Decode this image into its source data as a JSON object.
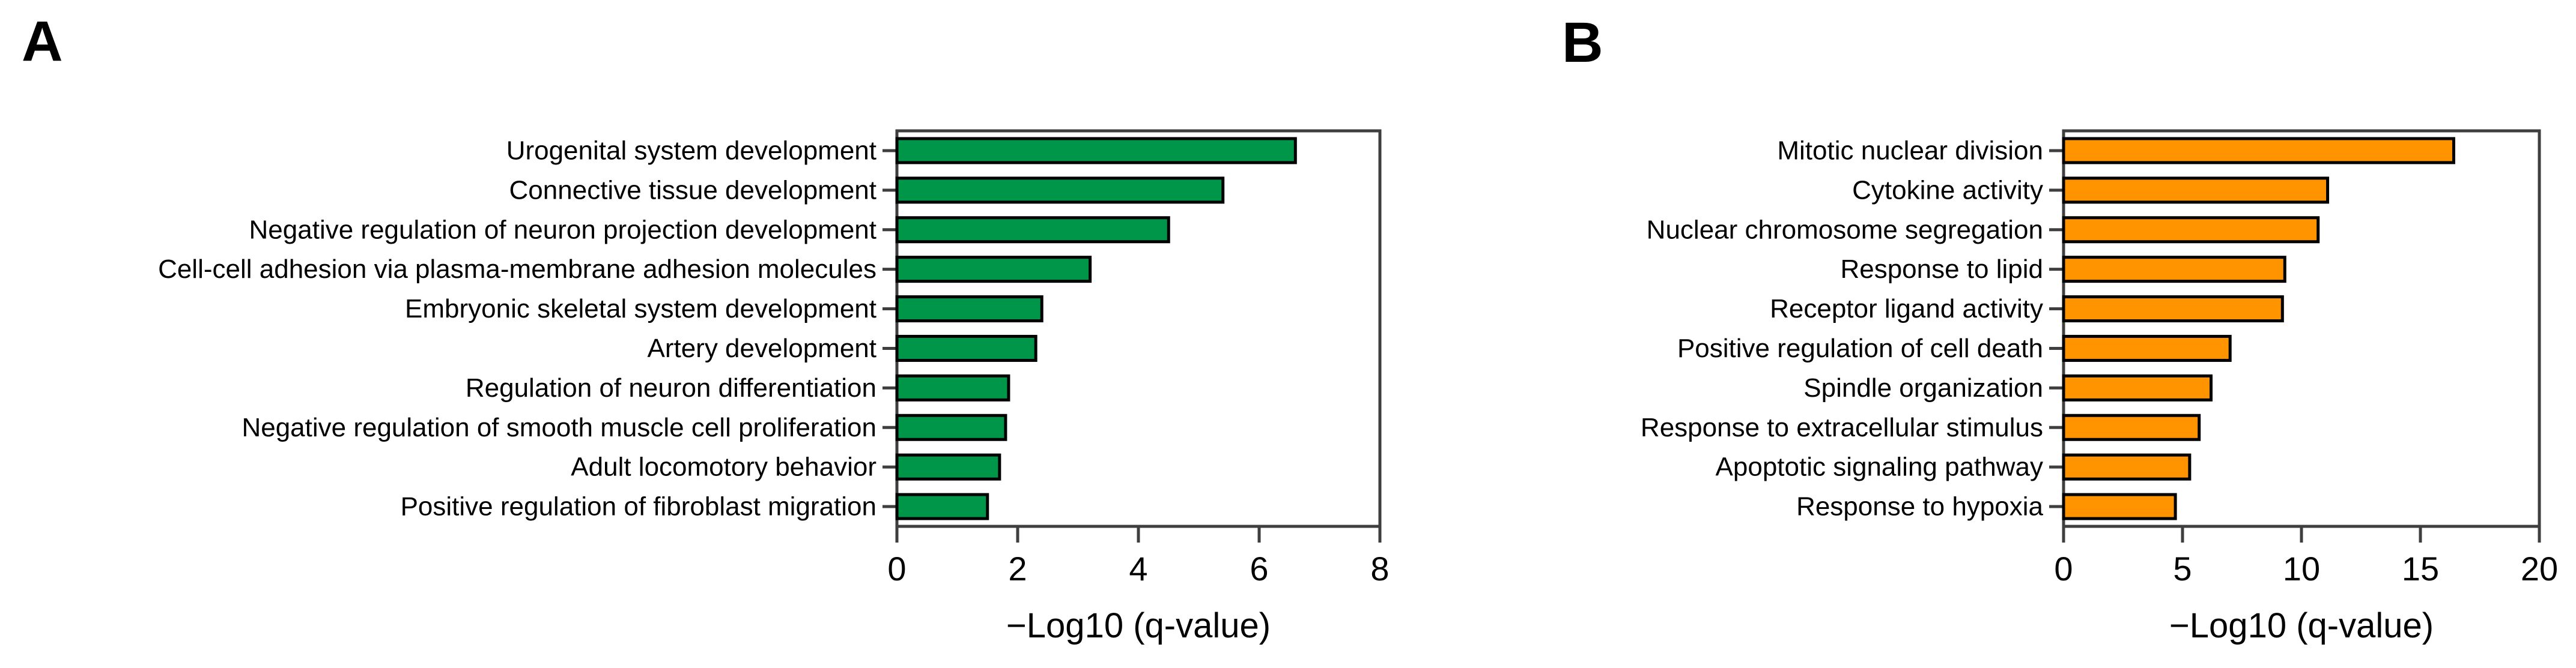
{
  "figure": {
    "background": "#ffffff",
    "text_color": "#000000",
    "frame_color": "#3f3f3f",
    "bar_outline_color": "#000000"
  },
  "chart_data": [
    {
      "type": "bar",
      "panel_label": "A",
      "orientation": "horizontal",
      "bar_color": "#00964a",
      "categories": [
        "Urogenital system development",
        "Connective tissue development",
        "Negative regulation of neuron projection development",
        "Cell-cell adhesion via plasma-membrane adhesion molecules",
        "Embryonic skeletal system development",
        "Artery development",
        "Regulation of neuron differentiation",
        "Negative regulation of smooth muscle cell proliferation",
        "Adult locomotory behavior",
        "Positive regulation of fibroblast migration"
      ],
      "values": [
        6.6,
        5.4,
        4.5,
        3.2,
        2.4,
        2.3,
        1.85,
        1.8,
        1.7,
        1.5
      ],
      "xlabel": "−Log10 (q-value)",
      "ylabel": "",
      "xlim": [
        0,
        8
      ],
      "xticks": [
        0,
        2,
        4,
        6,
        8
      ],
      "grid": false,
      "legend": "none"
    },
    {
      "type": "bar",
      "panel_label": "B",
      "orientation": "horizontal",
      "bar_color": "#ff9300",
      "categories": [
        "Mitotic nuclear division",
        "Cytokine activity",
        "Nuclear chromosome segregation",
        "Response to lipid",
        "Receptor ligand activity",
        "Positive regulation of cell death",
        "Spindle organization",
        "Response to extracellular stimulus",
        "Apoptotic signaling pathway",
        "Response to hypoxia"
      ],
      "values": [
        16.4,
        11.1,
        10.7,
        9.3,
        9.2,
        7.0,
        6.2,
        5.7,
        5.3,
        4.7
      ],
      "xlabel": "−Log10 (q-value)",
      "ylabel": "",
      "xlim": [
        0,
        20
      ],
      "xticks": [
        0,
        5,
        10,
        15,
        20
      ],
      "grid": false,
      "legend": "none"
    }
  ]
}
